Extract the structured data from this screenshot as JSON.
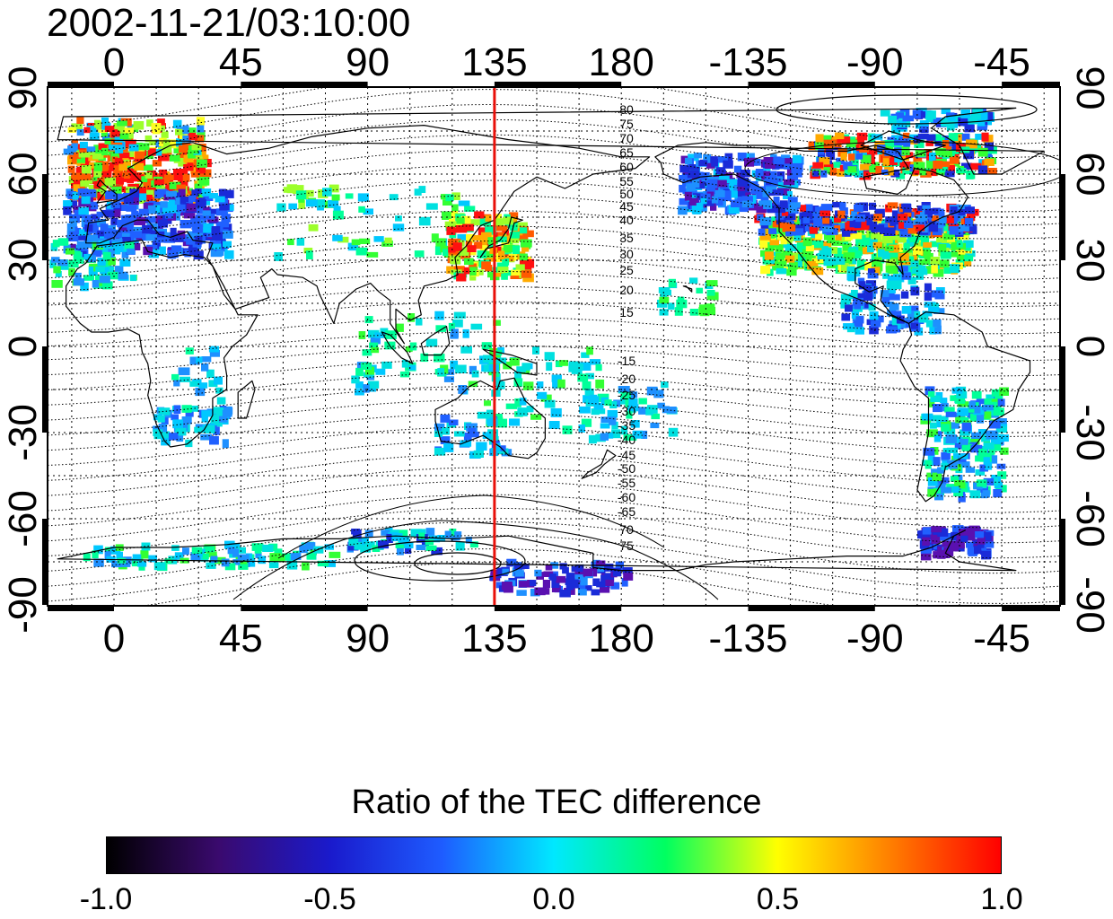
{
  "title": "2002-11-21/03:10:00",
  "x_ticks": [
    "0",
    "45",
    "90",
    "135",
    "180",
    "-135",
    "-90",
    "-45"
  ],
  "y_ticks_left": [
    "90",
    "60",
    "30",
    "0",
    "-30",
    "-60",
    "-90"
  ],
  "y_ticks_right": [
    "90",
    "60",
    "30",
    "0",
    "-30",
    "-60",
    "-90"
  ],
  "contour_labels_north": [
    "80",
    "75",
    "70",
    "65",
    "60",
    "55",
    "50",
    "45",
    "40",
    "35",
    "30",
    "25",
    "20",
    "15"
  ],
  "contour_labels_south": [
    "-15",
    "-20",
    "-25",
    "-30",
    "-35",
    "-40",
    "-45",
    "-50",
    "-55",
    "-60",
    "-65",
    "70",
    "75"
  ],
  "marker_longitude": 135,
  "colorbar": {
    "title": "Ratio of the TEC difference",
    "labels": [
      "-1.0",
      "-0.5",
      "0.0",
      "0.5",
      "1.0"
    ],
    "colors": [
      "#000000",
      "#3a0a6e",
      "#1a1acc",
      "#1e5cff",
      "#00e8ff",
      "#00ff60",
      "#ffff00",
      "#ff8000",
      "#ff0000"
    ]
  },
  "colors": {
    "marker_line": "#e8100a",
    "coast": "#000000"
  }
}
